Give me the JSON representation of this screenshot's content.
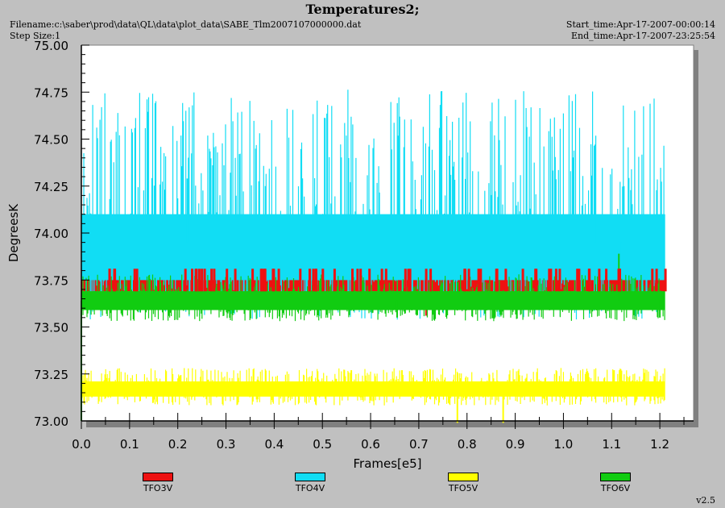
{
  "header": {
    "title": "Temperatures2;",
    "filename": "Filename:c:\\saber\\prod\\data\\QL\\data\\plot_data\\SABE_Tlm2007107000000.dat",
    "step_size": "Step Size:1",
    "start_time": "Start_time:Apr-17-2007-00:00:14",
    "end_time": "End_time:Apr-17-2007-23:25:54",
    "version": "v2.5"
  },
  "chart_data": {
    "type": "line",
    "xlabel": "Frames[e5]",
    "ylabel": "DegreesK",
    "xlim": [
      0.0,
      1.27
    ],
    "ylim": [
      73.0,
      75.0
    ],
    "x_ticks": [
      "0.0",
      "0.1",
      "0.2",
      "0.3",
      "0.4",
      "0.5",
      "0.6",
      "0.7",
      "0.8",
      "0.9",
      "1.0",
      "1.1",
      "1.2"
    ],
    "y_ticks": [
      "73.00",
      "73.25",
      "73.50",
      "73.75",
      "74.00",
      "74.25",
      "74.50",
      "74.75",
      "75.00"
    ],
    "grid": false,
    "legend_position": "bottom",
    "series": [
      {
        "name": "TFO3V",
        "color": "#ee1111",
        "x_range": [
          0.0,
          1.21
        ],
        "base": 73.75,
        "band": [
          73.69,
          73.81
        ],
        "spikes": [
          [
            0.715,
            73.56
          ]
        ]
      },
      {
        "name": "TFO4V",
        "color": "#11ddf4",
        "x_range": [
          0.0,
          1.21
        ],
        "base": 73.95,
        "band": [
          73.75,
          74.1
        ],
        "spikes": [
          [
            0.01,
            73.62
          ],
          [
            0.22,
            74.29
          ],
          [
            1.065,
            74.38
          ],
          [
            1.12,
            73.85
          ]
        ]
      },
      {
        "name": "TFO5V",
        "color": "#ffff00",
        "x_range": [
          0.0,
          1.21
        ],
        "base": 73.17,
        "band": [
          73.13,
          73.21
        ],
        "spikes": [
          [
            0.78,
            72.99
          ],
          [
            0.875,
            72.99
          ],
          [
            0.56,
            73.27
          ],
          [
            0.665,
            73.27
          ],
          [
            1.105,
            73.27
          ]
        ]
      },
      {
        "name": "TFO6V",
        "color": "#11cc11",
        "x_range": [
          0.0,
          1.21
        ],
        "base": 73.64,
        "band": [
          73.59,
          73.69
        ],
        "spikes": [
          [
            0.0,
            73.0
          ],
          [
            0.655,
            73.55
          ],
          [
            1.115,
            73.89
          ],
          [
            1.2,
            73.55
          ]
        ]
      }
    ]
  }
}
